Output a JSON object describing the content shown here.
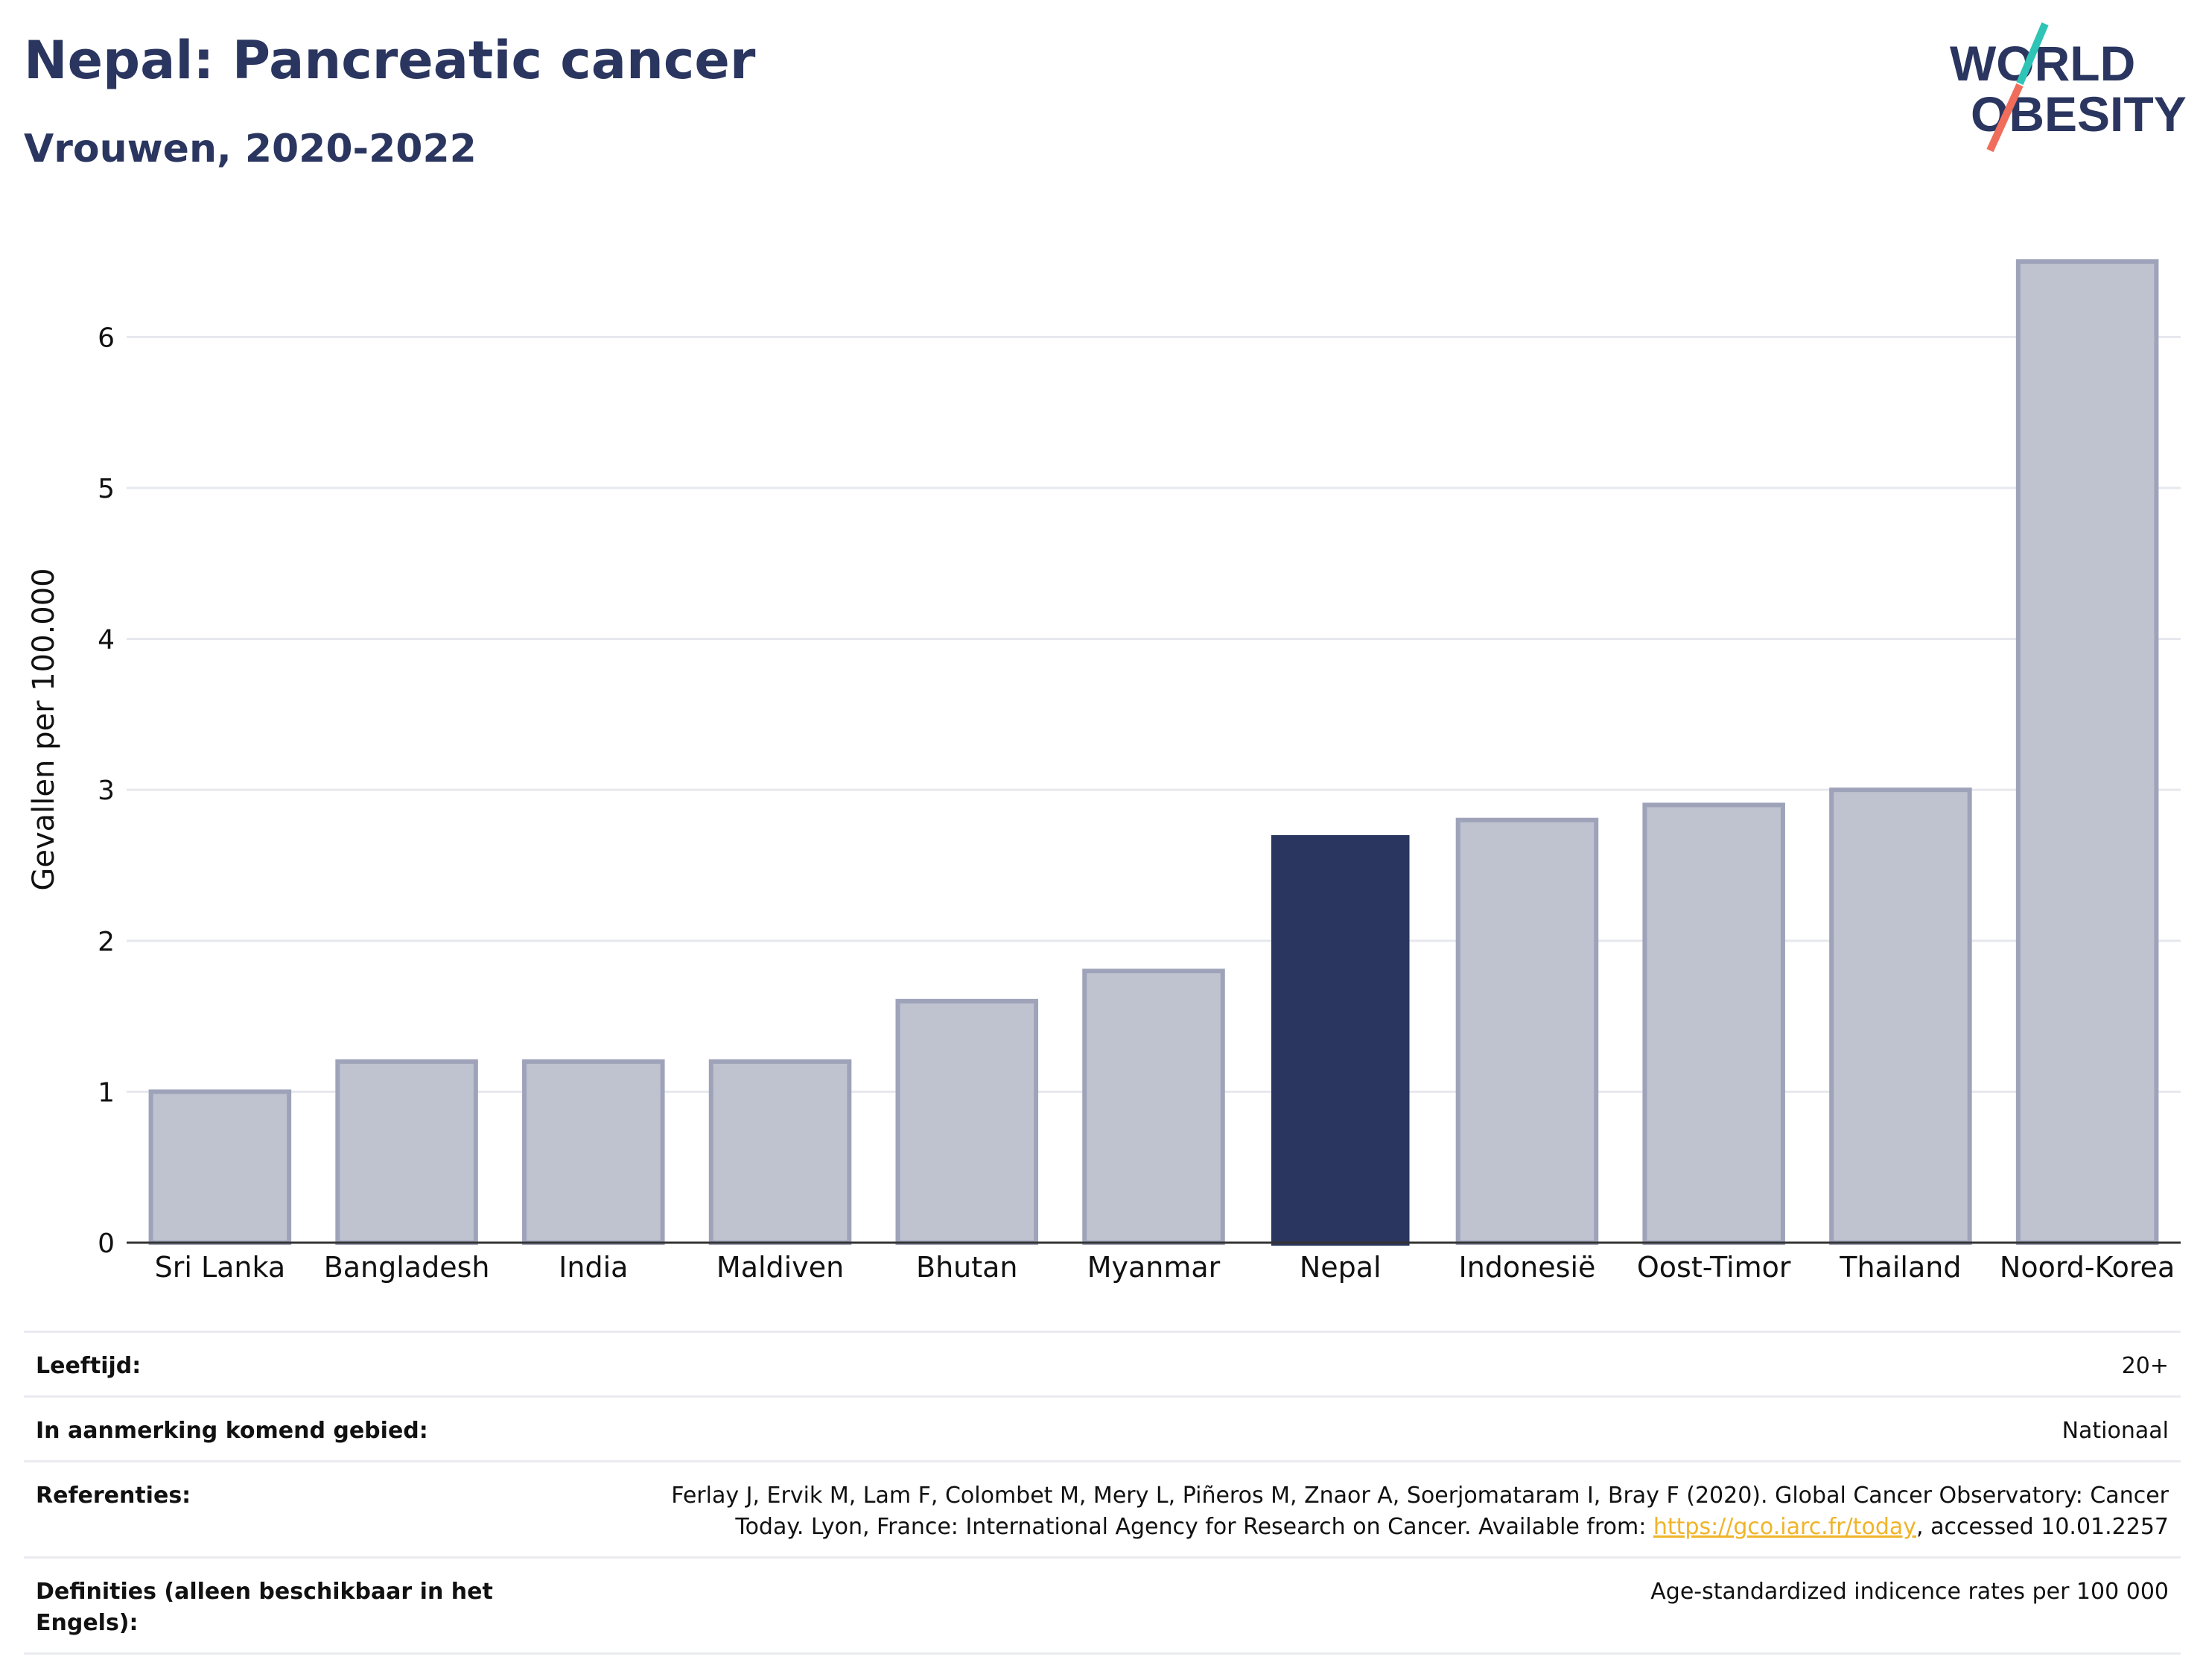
{
  "header": {
    "title": "Nepal: Pancreatic cancer",
    "subtitle": "Vrouwen, 2020-2022"
  },
  "logo": {
    "line1": "WORLD",
    "line2": "OBESITY",
    "colors": {
      "navy": "#2a365f",
      "teal": "#2ec4b6",
      "coral": "#f06d5b"
    }
  },
  "chart_data": {
    "type": "bar",
    "categories": [
      "Sri Lanka",
      "Bangladesh",
      "India",
      "Maldiven",
      "Bhutan",
      "Myanmar",
      "Nepal",
      "Indonesië",
      "Oost-Timor",
      "Thailand",
      "Noord-Korea"
    ],
    "values": [
      1.0,
      1.2,
      1.2,
      1.2,
      1.6,
      1.8,
      2.7,
      2.8,
      2.9,
      3.0,
      6.5
    ],
    "highlight": "Nepal",
    "ylabel": "Gevallen per 100.000",
    "xlabel": "",
    "ylim": [
      0,
      6.9
    ],
    "yticks": [
      0,
      1,
      2,
      3,
      4,
      5,
      6
    ],
    "grid": true,
    "colors": {
      "highlight": "#2a365f",
      "other_fill": "#bfc3d0",
      "other_stroke": "#9ea3ba",
      "grid": "#e6e8ee"
    }
  },
  "info": [
    {
      "label": "Leeftijd:",
      "value": "20+"
    },
    {
      "label": "In aanmerking komend gebied:",
      "value": "Nationaal"
    },
    {
      "label": "Referenties:",
      "value_line1": "Ferlay J, Ervik M, Lam F, Colombet M, Mery L, Piñeros M, Znaor A, Soerjomataram I, Bray F (2020). Global Cancer Observatory: Cancer",
      "value_before_link": "Today. Lyon, France: International Agency for Research on Cancer. Available from: ",
      "link_text": "https://gco.iarc.fr/today",
      "value_after_link": ", accessed 10.01.2257"
    },
    {
      "label": "Definities (alleen beschikbaar in het Engels):",
      "value": "Age-standardized indicence rates per 100 000"
    }
  ]
}
